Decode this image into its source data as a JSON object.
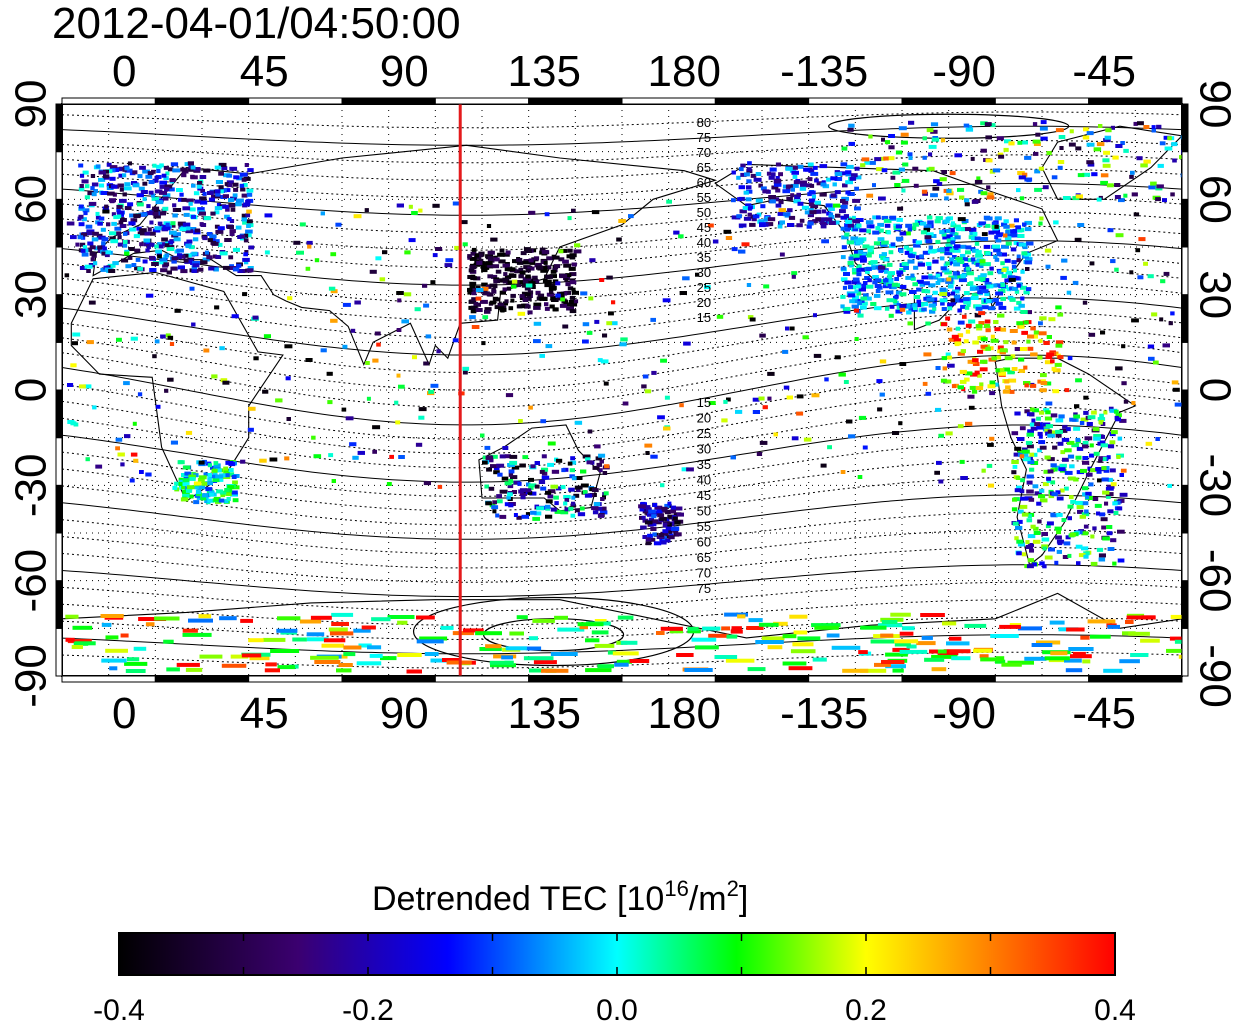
{
  "title": "2012-04-01/04:50:00",
  "map": {
    "x_axis_top_labels": [
      "0",
      "45",
      "90",
      "135",
      "180",
      "-135",
      "-90",
      "-45"
    ],
    "x_axis_bottom_labels": [
      "0",
      "45",
      "90",
      "135",
      "180",
      "-135",
      "-90",
      "-45"
    ],
    "y_axis_left_labels": [
      "90",
      "60",
      "30",
      "0",
      "-30",
      "-60",
      "-90"
    ],
    "y_axis_right_labels": [
      "90",
      "60",
      "30",
      "0",
      "-30",
      "-60",
      "-90"
    ],
    "x_ticks_lon": [
      0,
      45,
      90,
      135,
      180,
      225,
      270,
      315
    ],
    "y_ticks_lat": [
      90,
      60,
      30,
      0,
      -30,
      -60,
      -90
    ],
    "lon_range": [
      -20,
      340
    ],
    "lat_range": [
      -90,
      90
    ],
    "marker_line_lon": 108,
    "marker_line_color": "#e41a1c",
    "contour_labels_north": [
      "80",
      "75",
      "70",
      "65",
      "60",
      "55",
      "50",
      "45",
      "40",
      "35",
      "30",
      "25",
      "20",
      "15"
    ],
    "contour_labels_south": [
      "15",
      "20",
      "25",
      "30",
      "35",
      "40",
      "45",
      "50",
      "55",
      "60",
      "65",
      "70",
      "75"
    ]
  },
  "colorbar": {
    "title_text": "Detrended TEC  [10",
    "title_sup": "16",
    "title_unit": "/m",
    "title_sup2": "2",
    "title_close": "]",
    "min": -0.4,
    "max": 0.4,
    "tick_labels": [
      "-0.4",
      "-0.2",
      "0.0",
      "0.2",
      "0.4"
    ],
    "stops": [
      "#000000",
      "#3b0070",
      "#0000ff",
      "#00ffff",
      "#00ff00",
      "#ffff00",
      "#ff0000"
    ]
  }
}
